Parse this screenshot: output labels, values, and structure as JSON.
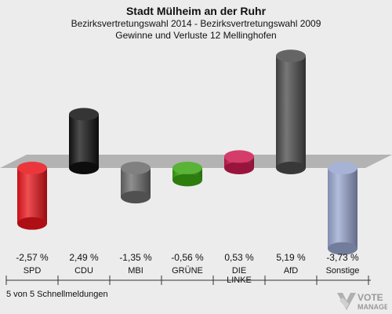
{
  "header": {
    "title": "Stadt Mülheim an der Ruhr",
    "subtitle1": "Bezirksvertretungswahl 2014 - Bezirksvertretungswahl 2009",
    "subtitle2": "Gewinne und Verluste 12 Mellinghofen"
  },
  "footer": {
    "note": "5 von 5 Schnellmeldungen"
  },
  "logo": {
    "text": "VOTE",
    "subtext": "MANAGER"
  },
  "colors": {
    "SPD": "#e8141a",
    "CDU": "#111111",
    "MBI": "#6a6a6a",
    "GRUENE": "#3aa512",
    "LINKE": "#cc1a50",
    "AfD": "#4a4a4a",
    "Sonstige": "#98a6cf",
    "plane": "#b3b3b3"
  },
  "chart_data": {
    "type": "bar",
    "categories": [
      "SPD",
      "CDU",
      "MBI",
      "GRÜNE",
      "DIE LINKE",
      "AfD",
      "Sonstige"
    ],
    "category_lines": [
      [
        "SPD"
      ],
      [
        "CDU"
      ],
      [
        "MBI"
      ],
      [
        "GRÜNE"
      ],
      [
        "DIE",
        "LINKE"
      ],
      [
        "AfD"
      ],
      [
        "Sonstige"
      ]
    ],
    "values": [
      -2.57,
      2.49,
      -1.35,
      -0.56,
      0.53,
      5.19,
      -3.73
    ],
    "value_labels": [
      "-2,57 %",
      "2,49 %",
      "-1,35 %",
      "-0,56 %",
      "0,53 %",
      "5,19 %",
      "-3,73 %"
    ],
    "colors": [
      "#e8141a",
      "#111111",
      "#6a6a6a",
      "#3aa512",
      "#cc1a50",
      "#4a4a4a",
      "#98a6cf"
    ],
    "title": "Stadt Mülheim an der Ruhr",
    "xlabel": "",
    "ylabel": ""
  }
}
